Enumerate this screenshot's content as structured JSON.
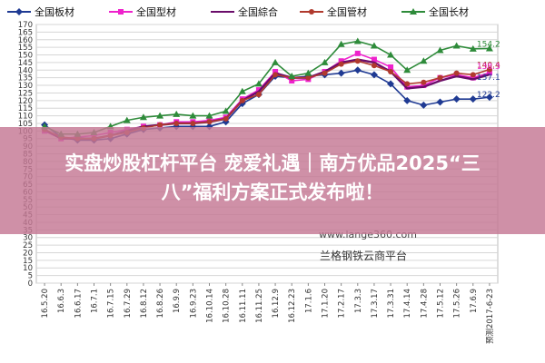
{
  "chart_data": {
    "type": "line",
    "legend_position": "top",
    "grid": true,
    "ylim": [
      0,
      170
    ],
    "yticks": [
      0,
      5,
      10,
      15,
      20,
      25,
      30,
      35,
      40,
      45,
      50,
      55,
      60,
      65,
      70,
      75,
      80,
      85,
      90,
      95,
      100,
      105,
      110,
      115,
      120,
      125,
      130,
      135,
      140,
      145,
      150,
      155,
      160,
      165,
      170
    ],
    "xtick_labels": [
      "16.5.20",
      "16.6.3",
      "16.6.17",
      "16.7.1",
      "16.7.15",
      "16.7.29",
      "16.8.12",
      "16.8.26",
      "16.9.9",
      "16.9.23",
      "16.10.14",
      "16.10.28",
      "16.11.11",
      "16.11.25",
      "16.12.9",
      "16.12.23",
      "17.1.6",
      "17.1.20",
      "17.2.17",
      "17.3.3",
      "17.3.17",
      "17.3.31",
      "17.4.14",
      "17.4.28",
      "17.5.12",
      "17.5.26",
      "17.6.9",
      "预测2017-6-23"
    ],
    "series": [
      {
        "name": "全国板材",
        "color": "#1f3a93",
        "marker": "diamond",
        "values": [
          104,
          96,
          94,
          94,
          95,
          98,
          101,
          102,
          103,
          103,
          103,
          106,
          118,
          124,
          136,
          135,
          136,
          137,
          138,
          140,
          137,
          131,
          120,
          117,
          119,
          121,
          121,
          122.2
        ]
      },
      {
        "name": "全国型材",
        "color": "#ee22cc",
        "marker": "square",
        "values": [
          100,
          95,
          96,
          97,
          99,
          101,
          103,
          104,
          106,
          106,
          107,
          109,
          121,
          127,
          139,
          133,
          134,
          139,
          146,
          151,
          147,
          142,
          129,
          130,
          135,
          137,
          135,
          138.3
        ]
      },
      {
        "name": "全国綜合",
        "color": "#6a0d6a",
        "marker": "none",
        "values": [
          101,
          95,
          95,
          95,
          97,
          100,
          103,
          104,
          105,
          105,
          106,
          108,
          120,
          126,
          138,
          135,
          135,
          139,
          145,
          147,
          145,
          139,
          128,
          129,
          133,
          136,
          134,
          137.1
        ]
      },
      {
        "name": "全国管材",
        "color": "#b03a2e",
        "marker": "circle",
        "values": [
          101,
          96,
          95,
          95,
          97,
          99,
          102,
          104,
          105,
          105,
          106,
          108,
          120,
          124,
          137,
          135,
          135,
          138,
          144,
          146,
          143,
          139,
          131,
          132,
          135,
          138,
          137,
          140.4
        ]
      },
      {
        "name": "全国长材",
        "color": "#2e8b3a",
        "marker": "triangle",
        "values": [
          103,
          98,
          98,
          99,
          103,
          107,
          109,
          110,
          111,
          110,
          110,
          113,
          126,
          131,
          145,
          136,
          138,
          145,
          157,
          159,
          156,
          150,
          140,
          146,
          153,
          156,
          154,
          154.2
        ]
      }
    ],
    "end_labels": [
      "154.2",
      "140.4",
      "138.3",
      "137.1",
      "122.2"
    ],
    "watermark": [
      "www.lange360.com",
      "兰格钢铁云商平台"
    ]
  },
  "banner": {
    "line1": "实盘炒股杠杆平台 宠爱礼遇｜南方优品2025“三",
    "line2": "八”福利方案正式发布啦！"
  }
}
